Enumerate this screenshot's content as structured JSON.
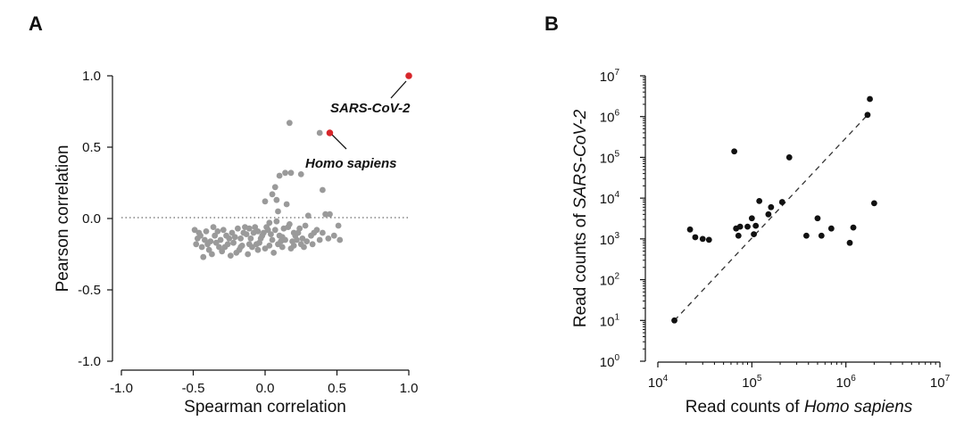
{
  "chart_data": [
    {
      "panel": "A",
      "type": "scatter",
      "xlabel": "Spearman correlation",
      "ylabel": "Pearson correlation",
      "xlim": [
        -1.0,
        1.0
      ],
      "ylim": [
        -1.0,
        1.0
      ],
      "xticks": [
        "-1.0",
        "-0.5",
        "0.0",
        "0.5",
        "1.0"
      ],
      "yticks": [
        "-1.0",
        "-0.5",
        "0.0",
        "0.5",
        "1.0"
      ],
      "reference_line": {
        "y": 0.0,
        "style": "dotted"
      },
      "colors": {
        "background_points": "#9a9a9a",
        "highlight": "#d7262b"
      },
      "highlights": [
        {
          "label": "SARS-CoV-2",
          "x": 1.0,
          "y": 1.0
        },
        {
          "label": "Homo sapiens",
          "x": 0.45,
          "y": 0.6
        }
      ],
      "points": [
        [
          0.17,
          0.67
        ],
        [
          0.38,
          0.6
        ],
        [
          0.18,
          0.32
        ],
        [
          0.1,
          0.3
        ],
        [
          0.14,
          0.32
        ],
        [
          0.25,
          0.31
        ],
        [
          0.07,
          0.22
        ],
        [
          0.4,
          0.2
        ],
        [
          0.05,
          0.17
        ],
        [
          0.08,
          0.13
        ],
        [
          0.15,
          0.1
        ],
        [
          0.3,
          0.02
        ],
        [
          0.42,
          0.03
        ],
        [
          0.51,
          -0.05
        ],
        [
          0.48,
          -0.12
        ],
        [
          0.52,
          -0.15
        ],
        [
          0.44,
          -0.14
        ],
        [
          0.36,
          -0.08
        ],
        [
          0.38,
          -0.15
        ],
        [
          0.32,
          -0.12
        ],
        [
          0.28,
          -0.05
        ],
        [
          0.25,
          -0.18
        ],
        [
          0.2,
          -0.1
        ],
        [
          0.16,
          -0.06
        ],
        [
          0.12,
          -0.2
        ],
        [
          0.08,
          -0.02
        ],
        [
          0.05,
          -0.15
        ],
        [
          0.02,
          -0.08
        ],
        [
          -0.02,
          -0.12
        ],
        [
          -0.05,
          -0.22
        ],
        [
          -0.08,
          -0.1
        ],
        [
          -0.11,
          -0.18
        ],
        [
          -0.14,
          -0.06
        ],
        [
          -0.17,
          -0.14
        ],
        [
          -0.2,
          -0.24
        ],
        [
          -0.23,
          -0.1
        ],
        [
          -0.26,
          -0.18
        ],
        [
          -0.29,
          -0.08
        ],
        [
          -0.32,
          -0.2
        ],
        [
          -0.35,
          -0.12
        ],
        [
          -0.38,
          -0.16
        ],
        [
          -0.41,
          -0.09
        ],
        [
          -0.44,
          -0.2
        ],
        [
          -0.47,
          -0.14
        ],
        [
          -0.49,
          -0.08
        ],
        [
          -0.43,
          -0.27
        ],
        [
          -0.37,
          -0.25
        ],
        [
          -0.3,
          -0.23
        ],
        [
          -0.24,
          -0.26
        ],
        [
          -0.18,
          -0.22
        ],
        [
          -0.12,
          -0.25
        ],
        [
          -0.06,
          -0.18
        ],
        [
          0.0,
          -0.21
        ],
        [
          0.06,
          -0.24
        ],
        [
          0.11,
          -0.16
        ],
        [
          0.18,
          -0.21
        ],
        [
          0.22,
          -0.15
        ],
        [
          0.27,
          -0.2
        ],
        [
          0.33,
          -0.18
        ],
        [
          0.4,
          -0.1
        ],
        [
          -0.4,
          -0.18
        ],
        [
          -0.36,
          -0.06
        ],
        [
          -0.31,
          -0.15
        ],
        [
          -0.27,
          -0.12
        ],
        [
          -0.22,
          -0.17
        ],
        [
          -0.19,
          -0.07
        ],
        [
          -0.16,
          -0.19
        ],
        [
          -0.13,
          -0.11
        ],
        [
          -0.1,
          -0.14
        ],
        [
          -0.07,
          -0.06
        ],
        [
          -0.04,
          -0.17
        ],
        [
          -0.01,
          -0.1
        ],
        [
          0.03,
          -0.19
        ],
        [
          0.07,
          -0.08
        ],
        [
          0.1,
          -0.12
        ],
        [
          0.14,
          -0.15
        ],
        [
          0.17,
          -0.04
        ],
        [
          0.21,
          -0.12
        ],
        [
          0.24,
          -0.07
        ],
        [
          0.26,
          -0.14
        ],
        [
          -0.45,
          -0.12
        ],
        [
          -0.42,
          -0.15
        ],
        [
          -0.39,
          -0.22
        ],
        [
          -0.34,
          -0.17
        ],
        [
          -0.28,
          -0.2
        ],
        [
          -0.21,
          -0.13
        ],
        [
          -0.15,
          -0.1
        ],
        [
          -0.09,
          -0.2
        ],
        [
          -0.03,
          -0.14
        ],
        [
          0.01,
          -0.06
        ],
        [
          0.04,
          -0.11
        ],
        [
          0.09,
          -0.18
        ],
        [
          0.13,
          -0.07
        ],
        [
          0.19,
          -0.16
        ],
        [
          0.23,
          -0.1
        ],
        [
          0.29,
          -0.16
        ],
        [
          0.34,
          -0.1
        ],
        [
          0.45,
          0.03
        ],
        [
          0.0,
          0.12
        ],
        [
          0.09,
          0.05
        ],
        [
          -0.33,
          -0.09
        ],
        [
          -0.25,
          -0.14
        ],
        [
          -0.17,
          -0.2
        ],
        [
          -0.11,
          -0.07
        ],
        [
          -0.05,
          -0.09
        ],
        [
          0.03,
          -0.03
        ],
        [
          0.12,
          -0.13
        ],
        [
          0.2,
          -0.19
        ],
        [
          -0.48,
          -0.18
        ],
        [
          -0.46,
          -0.1
        ]
      ]
    },
    {
      "panel": "B",
      "type": "scatter",
      "scale": "log-log",
      "xlabel_prefix": "Read counts of ",
      "xlabel_species": "Homo sapiens",
      "ylabel_prefix": "Read counts of ",
      "ylabel_species": "SARS-CoV-2",
      "x_exponent_range": [
        4,
        7
      ],
      "y_exponent_range": [
        0,
        7
      ],
      "tick_base": "10",
      "x_tick_exponents": [
        "4",
        "5",
        "6",
        "7"
      ],
      "y_tick_exponents": [
        "0",
        "1",
        "2",
        "3",
        "4",
        "5",
        "6",
        "7"
      ],
      "fit_line": {
        "from": [
          15000,
          10
        ],
        "to": [
          1700000,
          1100000
        ],
        "style": "dashed"
      },
      "points": [
        [
          15000,
          10
        ],
        [
          22000,
          1700
        ],
        [
          25000,
          1100
        ],
        [
          30000,
          1000
        ],
        [
          35000,
          950
        ],
        [
          65000,
          140000
        ],
        [
          68000,
          1800
        ],
        [
          72000,
          1200
        ],
        [
          75000,
          2000
        ],
        [
          90000,
          2000
        ],
        [
          100000,
          3200
        ],
        [
          105000,
          1300
        ],
        [
          110000,
          2100
        ],
        [
          120000,
          8500
        ],
        [
          150000,
          4000
        ],
        [
          160000,
          6000
        ],
        [
          210000,
          8000
        ],
        [
          250000,
          100000
        ],
        [
          380000,
          1200
        ],
        [
          500000,
          3200
        ],
        [
          550000,
          1200
        ],
        [
          700000,
          1800
        ],
        [
          1100000,
          800
        ],
        [
          1200000,
          1900
        ],
        [
          1700000,
          1100000
        ],
        [
          1800000,
          2700000
        ],
        [
          2000000,
          7500
        ]
      ]
    }
  ]
}
